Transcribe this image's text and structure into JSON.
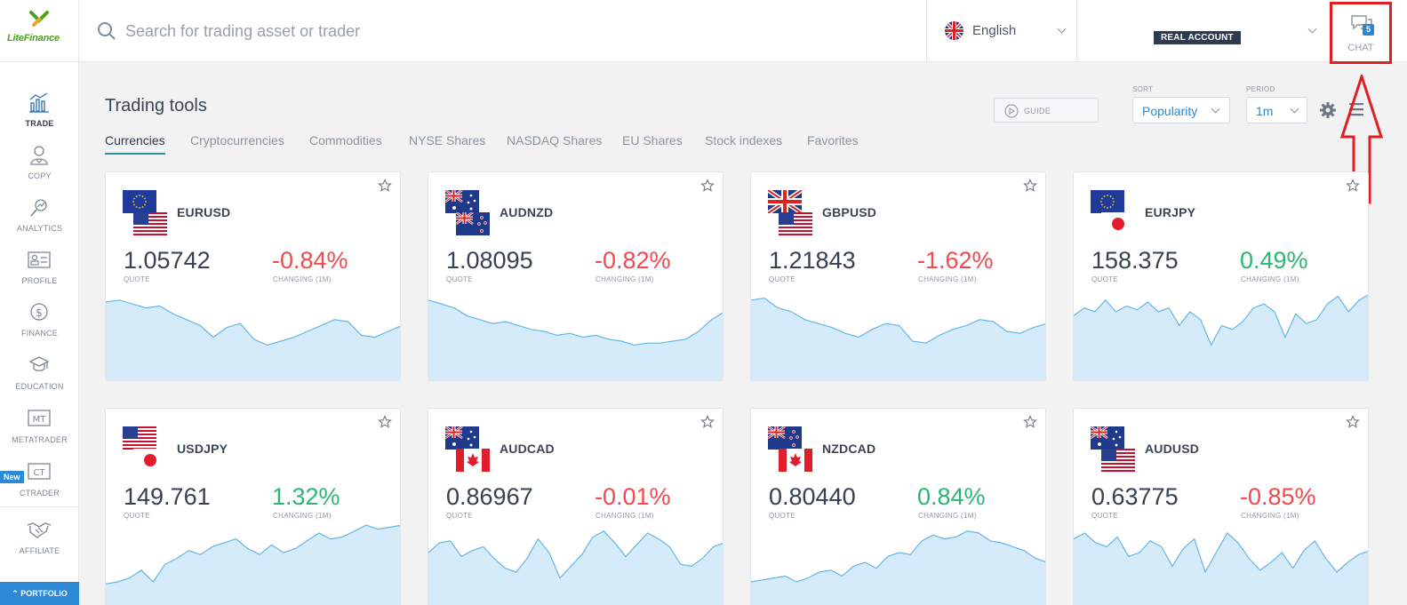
{
  "header": {
    "logo_text": "LiteFinance",
    "search_placeholder": "Search for trading asset or trader",
    "language": "English",
    "account_badge": "REAL ACCOUNT",
    "chat_label": "CHAT",
    "chat_count": "5"
  },
  "sidebar": {
    "items": [
      {
        "label": "TRADE",
        "icon": "trade-chart-icon",
        "active": true
      },
      {
        "label": "COPY",
        "icon": "copy-trader-icon"
      },
      {
        "label": "ANALYTICS",
        "icon": "analytics-icon"
      },
      {
        "label": "PROFILE",
        "icon": "profile-card-icon"
      },
      {
        "label": "FINANCE",
        "icon": "dollar-coin-icon"
      },
      {
        "label": "EDUCATION",
        "icon": "graduation-cap-icon"
      },
      {
        "label": "METATRADER",
        "icon": "mt-icon"
      },
      {
        "label": "CTRADER",
        "icon": "ct-icon",
        "badge": "New"
      },
      {
        "label": "AFFILIATE",
        "icon": "handshake-icon"
      }
    ],
    "portfolio_label": "PORTFOLIO"
  },
  "main": {
    "title": "Trading tools",
    "tabs": [
      "Currencies",
      "Cryptocurrencies",
      "Commodities",
      "NYSE Shares",
      "NASDAQ Shares",
      "EU Shares",
      "Stock indexes",
      "Favorites"
    ],
    "active_tab": "Currencies",
    "guide_label": "GUIDE",
    "sort_label": "SORT",
    "sort_value": "Popularity",
    "period_label": "PERIOD",
    "period_value": "1m"
  },
  "labels": {
    "quote": "QUOTE",
    "changing": "CHANGING (1M)"
  },
  "colors": {
    "negative": "#ef4a4f",
    "positive": "#2bb673",
    "accent": "#2788d8",
    "highlight": "#e01e24"
  },
  "cards": [
    {
      "pair": "EURUSD",
      "quote": "1.05742",
      "change": "-0.84%",
      "dir": "neg",
      "flags": [
        "eu",
        "us"
      ],
      "spark": [
        0.8,
        0.82,
        0.78,
        0.74,
        0.76,
        0.68,
        0.62,
        0.56,
        0.44,
        0.54,
        0.58,
        0.42,
        0.36,
        0.4,
        0.44,
        0.5,
        0.56,
        0.62,
        0.6,
        0.46,
        0.44,
        0.5,
        0.56
      ]
    },
    {
      "pair": "AUDNZD",
      "quote": "1.08095",
      "change": "-0.82%",
      "dir": "neg",
      "flags": [
        "au",
        "nz"
      ],
      "spark": [
        0.82,
        0.78,
        0.74,
        0.66,
        0.62,
        0.58,
        0.6,
        0.56,
        0.52,
        0.5,
        0.46,
        0.48,
        0.44,
        0.46,
        0.42,
        0.4,
        0.36,
        0.38,
        0.38,
        0.4,
        0.42,
        0.5,
        0.62,
        0.7
      ]
    },
    {
      "pair": "GBPUSD",
      "quote": "1.21843",
      "change": "-1.62%",
      "dir": "neg",
      "flags": [
        "gb",
        "us"
      ],
      "spark": [
        0.82,
        0.84,
        0.74,
        0.7,
        0.62,
        0.58,
        0.54,
        0.48,
        0.44,
        0.52,
        0.58,
        0.56,
        0.4,
        0.38,
        0.46,
        0.52,
        0.56,
        0.62,
        0.6,
        0.5,
        0.48,
        0.54,
        0.58
      ]
    },
    {
      "pair": "EURJPY",
      "quote": "158.375",
      "change": "0.49%",
      "dir": "pos",
      "flags": [
        "eu",
        "jp"
      ],
      "spark": [
        0.66,
        0.74,
        0.7,
        0.82,
        0.7,
        0.76,
        0.72,
        0.8,
        0.7,
        0.74,
        0.56,
        0.7,
        0.62,
        0.36,
        0.56,
        0.52,
        0.6,
        0.74,
        0.78,
        0.7,
        0.44,
        0.68,
        0.58,
        0.62,
        0.78,
        0.86,
        0.7,
        0.82,
        0.88
      ]
    },
    {
      "pair": "USDJPY",
      "quote": "149.761",
      "change": "1.32%",
      "dir": "pos",
      "flags": [
        "us",
        "jp"
      ],
      "spark": [
        0.28,
        0.3,
        0.34,
        0.42,
        0.3,
        0.48,
        0.54,
        0.62,
        0.58,
        0.66,
        0.7,
        0.74,
        0.64,
        0.58,
        0.68,
        0.6,
        0.64,
        0.72,
        0.8,
        0.74,
        0.76,
        0.82,
        0.88,
        0.84,
        0.86,
        0.88
      ]
    },
    {
      "pair": "AUDCAD",
      "quote": "0.86967",
      "change": "-0.01%",
      "dir": "neg",
      "flags": [
        "au",
        "ca"
      ],
      "spark": [
        0.6,
        0.7,
        0.72,
        0.56,
        0.62,
        0.66,
        0.54,
        0.44,
        0.4,
        0.54,
        0.74,
        0.6,
        0.34,
        0.46,
        0.58,
        0.76,
        0.82,
        0.7,
        0.56,
        0.68,
        0.8,
        0.74,
        0.66,
        0.48,
        0.46,
        0.54,
        0.66,
        0.7
      ]
    },
    {
      "pair": "NZDCAD",
      "quote": "0.80440",
      "change": "0.84%",
      "dir": "pos",
      "flags": [
        "nz",
        "ca"
      ],
      "spark": [
        0.3,
        0.32,
        0.34,
        0.36,
        0.3,
        0.34,
        0.4,
        0.42,
        0.36,
        0.46,
        0.5,
        0.44,
        0.56,
        0.6,
        0.58,
        0.72,
        0.78,
        0.74,
        0.76,
        0.82,
        0.8,
        0.72,
        0.7,
        0.66,
        0.62,
        0.54,
        0.5
      ]
    },
    {
      "pair": "AUDUSD",
      "quote": "0.63775",
      "change": "-0.85%",
      "dir": "neg",
      "flags": [
        "au",
        "us"
      ],
      "spark": [
        0.74,
        0.8,
        0.7,
        0.66,
        0.76,
        0.56,
        0.6,
        0.72,
        0.66,
        0.46,
        0.64,
        0.74,
        0.4,
        0.6,
        0.8,
        0.7,
        0.54,
        0.42,
        0.5,
        0.6,
        0.44,
        0.62,
        0.72,
        0.54,
        0.4,
        0.5,
        0.58,
        0.62
      ]
    }
  ]
}
